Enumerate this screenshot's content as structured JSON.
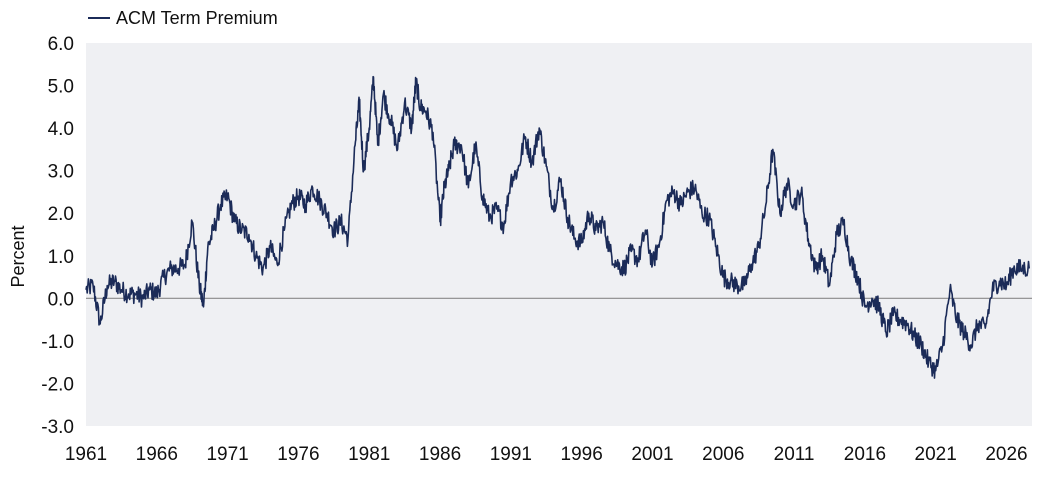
{
  "chart_data": {
    "type": "line",
    "title": "",
    "xlabel": "",
    "ylabel": "Percent",
    "xlim": [
      1961,
      2027.8
    ],
    "ylim": [
      -3.0,
      6.0
    ],
    "x_ticks": [
      "1961",
      "1966",
      "1971",
      "1976",
      "1981",
      "1986",
      "1991",
      "1996",
      "2001",
      "2006",
      "2011",
      "2016",
      "2021",
      "2026"
    ],
    "y_ticks": [
      "6.0",
      "5.0",
      "4.0",
      "3.0",
      "2.0",
      "1.0",
      "0.0",
      "-1.0",
      "-2.0",
      "-3.0"
    ],
    "grid": false,
    "zero_line": true,
    "legend": {
      "position": "top-left"
    },
    "colors": {
      "series": "#1b2b58",
      "plot_bg": "#eff0f3",
      "zero_line": "#8a8a8a",
      "text": "#111111"
    },
    "series": [
      {
        "name": "ACM Term Premium",
        "x": [
          1961.0,
          1961.5,
          1962.0,
          1962.5,
          1963.0,
          1963.5,
          1964.0,
          1964.5,
          1965.0,
          1965.5,
          1966.0,
          1966.5,
          1967.0,
          1967.5,
          1968.0,
          1968.5,
          1969.0,
          1969.3,
          1969.6,
          1970.0,
          1970.5,
          1971.0,
          1971.5,
          1972.0,
          1972.5,
          1973.0,
          1973.5,
          1974.0,
          1974.5,
          1975.0,
          1975.5,
          1976.0,
          1976.5,
          1977.0,
          1977.5,
          1978.0,
          1978.5,
          1979.0,
          1979.5,
          1980.0,
          1980.3,
          1980.6,
          1981.0,
          1981.3,
          1981.6,
          1982.0,
          1982.5,
          1983.0,
          1983.5,
          1984.0,
          1984.3,
          1984.6,
          1985.0,
          1985.5,
          1986.0,
          1986.3,
          1986.6,
          1987.0,
          1987.5,
          1988.0,
          1988.5,
          1989.0,
          1989.5,
          1990.0,
          1990.5,
          1991.0,
          1991.5,
          1992.0,
          1992.5,
          1993.0,
          1993.5,
          1994.0,
          1994.5,
          1995.0,
          1995.5,
          1996.0,
          1996.5,
          1997.0,
          1997.5,
          1998.0,
          1998.5,
          1999.0,
          1999.5,
          2000.0,
          2000.5,
          2001.0,
          2001.5,
          2002.0,
          2002.5,
          2003.0,
          2003.5,
          2004.0,
          2004.5,
          2005.0,
          2005.5,
          2006.0,
          2006.5,
          2007.0,
          2007.5,
          2008.0,
          2008.5,
          2009.0,
          2009.5,
          2010.0,
          2010.5,
          2011.0,
          2011.5,
          2012.0,
          2012.5,
          2013.0,
          2013.5,
          2014.0,
          2014.5,
          2015.0,
          2015.5,
          2016.0,
          2016.5,
          2017.0,
          2017.5,
          2018.0,
          2018.5,
          2019.0,
          2019.5,
          2020.0,
          2020.5,
          2021.0,
          2021.5,
          2022.0,
          2022.5,
          2023.0,
          2023.5,
          2024.0,
          2024.5,
          2025.0,
          2025.5,
          2026.0,
          2026.5,
          2027.0,
          2027.6
        ],
        "values": [
          0.2,
          0.3,
          -0.6,
          0.3,
          0.4,
          0.2,
          0.1,
          0.1,
          0.0,
          0.2,
          0.1,
          0.5,
          0.7,
          0.7,
          0.8,
          1.8,
          0.3,
          -0.2,
          1.2,
          1.6,
          2.2,
          2.4,
          1.8,
          1.6,
          1.5,
          1.0,
          0.7,
          1.2,
          0.8,
          1.6,
          2.2,
          2.4,
          2.2,
          2.6,
          2.3,
          2.0,
          1.6,
          1.8,
          1.4,
          3.6,
          4.6,
          3.0,
          4.0,
          5.2,
          3.6,
          4.8,
          4.2,
          3.5,
          4.6,
          4.0,
          5.1,
          4.5,
          4.4,
          3.9,
          1.8,
          2.6,
          3.0,
          3.6,
          3.6,
          2.6,
          3.6,
          2.4,
          1.9,
          2.1,
          1.7,
          2.8,
          3.0,
          3.8,
          3.2,
          4.0,
          3.1,
          2.1,
          2.8,
          1.9,
          1.4,
          1.3,
          2.0,
          1.6,
          1.8,
          1.1,
          0.8,
          0.7,
          1.1,
          0.9,
          1.6,
          0.8,
          1.3,
          2.3,
          2.5,
          2.2,
          2.5,
          2.6,
          2.0,
          1.9,
          1.2,
          0.5,
          0.4,
          0.3,
          0.3,
          0.8,
          1.2,
          2.2,
          3.5,
          2.0,
          2.7,
          2.2,
          2.5,
          1.4,
          0.7,
          1.0,
          0.3,
          1.5,
          1.8,
          0.9,
          0.5,
          -0.2,
          0.0,
          -0.2,
          -0.8,
          -0.4,
          -0.5,
          -0.6,
          -0.9,
          -1.1,
          -1.5,
          -1.7,
          -1.1,
          0.2,
          -0.5,
          -0.8,
          -1.1,
          -0.6,
          -0.7,
          0.2,
          0.4,
          0.3,
          0.7,
          0.7,
          0.7
        ]
      }
    ]
  }
}
